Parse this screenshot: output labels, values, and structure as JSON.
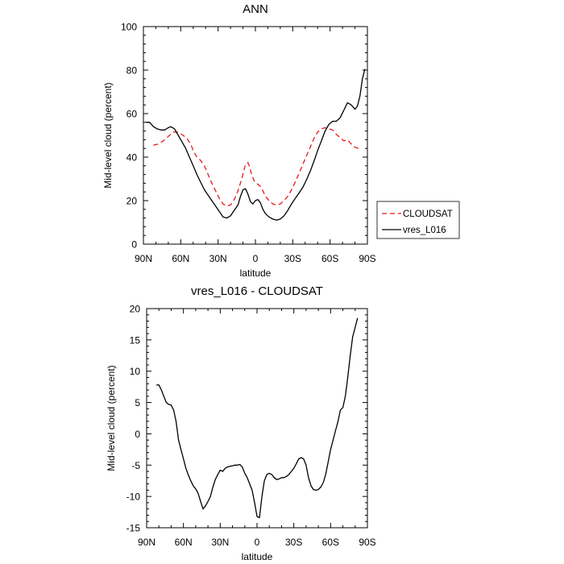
{
  "chart_data": [
    {
      "type": "line",
      "title": "ANN",
      "xlabel": "latitude",
      "ylabel": "Mid-level cloud (percent)",
      "xlim": [
        90,
        -90
      ],
      "ylim": [
        0,
        100
      ],
      "x_tick_labels": [
        "90N",
        "60N",
        "30N",
        "0",
        "30S",
        "60S",
        "90S"
      ],
      "x_tick_values": [
        90,
        60,
        30,
        0,
        -30,
        -60,
        -90
      ],
      "y_ticks": [
        0,
        20,
        40,
        60,
        80,
        100
      ],
      "legend_placement": "right",
      "series": [
        {
          "name": "CLOUDSAT",
          "color": "#e41a1c",
          "dash": "dashed",
          "x": [
            82,
            78,
            74,
            70,
            66,
            62,
            58,
            55,
            52,
            50,
            47,
            44,
            41,
            38,
            35,
            32,
            29,
            26,
            23,
            20,
            17,
            14,
            11,
            8,
            6,
            5,
            3,
            1,
            0,
            -2,
            -4,
            -6,
            -8,
            -11,
            -14,
            -17,
            -20,
            -23,
            -26,
            -29,
            -32,
            -35,
            -38,
            -41,
            -44,
            -47,
            -50,
            -53,
            -56,
            -59,
            -62,
            -65,
            -68,
            -71,
            -74,
            -77,
            -80,
            -83
          ],
          "y": [
            45.5,
            46,
            47.5,
            49.5,
            51.5,
            51.5,
            50,
            48.5,
            46,
            43,
            40,
            38.5,
            36,
            32,
            28,
            24.5,
            21,
            18.5,
            17.5,
            18,
            20.5,
            24.5,
            30,
            36.5,
            37.5,
            36,
            32,
            29,
            28.5,
            27.5,
            26.5,
            24.5,
            22,
            20,
            18.5,
            18,
            18.5,
            20,
            22,
            25,
            28.5,
            32.5,
            36.5,
            40.5,
            44.5,
            48.5,
            51.5,
            53,
            53.5,
            53,
            52.5,
            50.5,
            49,
            47.5,
            48,
            46,
            44.5,
            44
          ]
        },
        {
          "name": "vres_L016",
          "color": "#000000",
          "dash": "solid",
          "x": [
            88,
            85,
            82,
            79,
            76,
            73,
            70,
            68,
            65,
            62,
            59,
            56,
            53,
            50,
            47,
            44,
            41,
            38,
            35,
            32,
            29,
            26,
            23,
            20,
            17,
            14,
            12,
            10,
            8,
            6,
            4,
            2,
            0,
            -2,
            -4,
            -6,
            -8,
            -11,
            -14,
            -17,
            -20,
            -23,
            -26,
            -29,
            -32,
            -35,
            -38,
            -41,
            -44,
            -47,
            -50,
            -53,
            -56,
            -59,
            -62,
            -65,
            -68,
            -71,
            -74,
            -77,
            -80,
            -82,
            -84,
            -86,
            -88
          ],
          "y": [
            56,
            56,
            54,
            53,
            52.5,
            52.5,
            53.5,
            54,
            53,
            50,
            47,
            44,
            40,
            36,
            32,
            28.5,
            25,
            22.5,
            20,
            17.5,
            15,
            12.5,
            12,
            13,
            15.5,
            18,
            22,
            25,
            25.5,
            23,
            19.5,
            18.5,
            20,
            20.5,
            19,
            16,
            14,
            12.5,
            11.5,
            11,
            11.5,
            13,
            15.5,
            18.5,
            21,
            23.5,
            26,
            29.5,
            33.5,
            38,
            43,
            47.5,
            52,
            55,
            56.5,
            56.5,
            58,
            61.5,
            65,
            64,
            62,
            63.5,
            68,
            76,
            80.5
          ]
        }
      ]
    },
    {
      "type": "line",
      "title": "vres_L016 - CLOUDSAT",
      "xlabel": "latitude",
      "ylabel": "Mid-level cloud (percent)",
      "xlim": [
        90,
        -90
      ],
      "ylim": [
        -15,
        20
      ],
      "x_tick_labels": [
        "90N",
        "60N",
        "30N",
        "0",
        "30S",
        "60S",
        "90S"
      ],
      "x_tick_values": [
        90,
        60,
        30,
        0,
        -30,
        -60,
        -90
      ],
      "y_ticks": [
        -15,
        -10,
        -5,
        0,
        5,
        10,
        15,
        20
      ],
      "series": [
        {
          "color": "#000000",
          "dash": "solid",
          "x": [
            82,
            80,
            78,
            76,
            74,
            72,
            70,
            68,
            66,
            64,
            62,
            60,
            58,
            56,
            54,
            52,
            50,
            48,
            46,
            44,
            42,
            40,
            38,
            36,
            34,
            32,
            30,
            28,
            26,
            24,
            22,
            20,
            18,
            16,
            14,
            12,
            10,
            8,
            6,
            4,
            2,
            0,
            -2,
            -4,
            -6,
            -8,
            -10,
            -12,
            -14,
            -16,
            -18,
            -20,
            -22,
            -24,
            -26,
            -28,
            -30,
            -32,
            -34,
            -36,
            -38,
            -40,
            -42,
            -44,
            -46,
            -48,
            -50,
            -52,
            -54,
            -56,
            -58,
            -60,
            -62,
            -64,
            -66,
            -68,
            -70,
            -72,
            -74,
            -76,
            -78,
            -80,
            -82
          ],
          "y": [
            7.8,
            7.8,
            7.0,
            6.0,
            5.0,
            4.7,
            4.6,
            3.8,
            2.0,
            -1.0,
            -2.5,
            -4.0,
            -5.5,
            -6.6,
            -7.5,
            -8.3,
            -8.8,
            -9.5,
            -10.8,
            -12.0,
            -11.5,
            -10.8,
            -10.0,
            -8.5,
            -7.3,
            -6.5,
            -5.8,
            -6.0,
            -5.5,
            -5.3,
            -5.2,
            -5.1,
            -5.0,
            -5.0,
            -4.9,
            -5.3,
            -6.3,
            -7.0,
            -8.0,
            -9.0,
            -11.0,
            -13.2,
            -13.4,
            -10.0,
            -7.5,
            -6.5,
            -6.3,
            -6.5,
            -7.0,
            -7.3,
            -7.2,
            -7.0,
            -7.0,
            -6.8,
            -6.5,
            -6.0,
            -5.5,
            -4.8,
            -4.0,
            -3.8,
            -4.0,
            -5.0,
            -7.0,
            -8.3,
            -8.9,
            -9.0,
            -8.9,
            -8.5,
            -7.8,
            -6.5,
            -4.5,
            -2.5,
            -1.0,
            0.5,
            2.0,
            3.8,
            4.2,
            6.0,
            9.0,
            12.5,
            15.5,
            17.0,
            18.5
          ]
        }
      ]
    }
  ]
}
